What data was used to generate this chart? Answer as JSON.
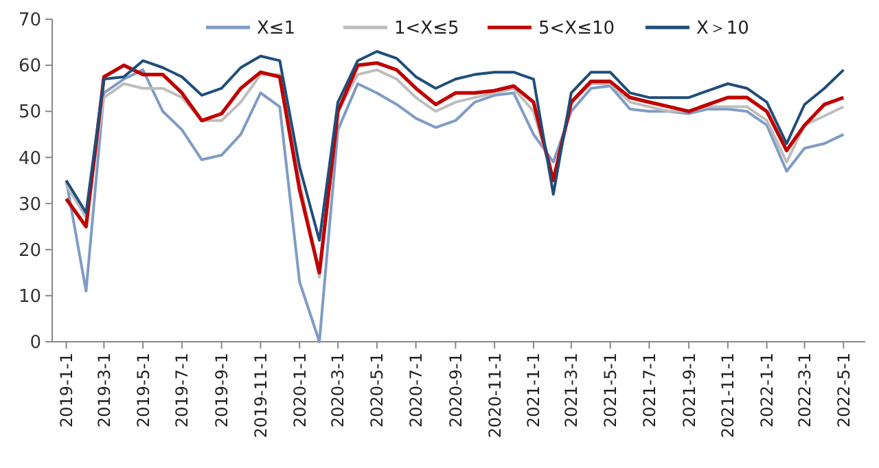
{
  "chart_data": {
    "type": "line",
    "x": [
      "2019-01",
      "2019-02",
      "2019-03",
      "2019-04",
      "2019-05",
      "2019-06",
      "2019-07",
      "2019-08",
      "2019-09",
      "2019-10",
      "2019-11",
      "2019-12",
      "2020-01",
      "2020-02",
      "2020-03",
      "2020-04",
      "2020-05",
      "2020-06",
      "2020-07",
      "2020-08",
      "2020-09",
      "2020-10",
      "2020-11",
      "2020-12",
      "2021-01",
      "2021-02",
      "2021-03",
      "2021-04",
      "2021-05",
      "2021-06",
      "2021-07",
      "2021-08",
      "2021-09",
      "2021-10",
      "2021-11",
      "2021-12",
      "2022-01",
      "2022-02",
      "2022-03",
      "2022-04",
      "2022-05"
    ],
    "series": [
      {
        "name": "X≤1",
        "color": "#7f9cc4",
        "values": [
          35,
          11,
          54,
          57,
          59,
          50,
          46,
          39.5,
          40.5,
          45,
          54,
          51,
          13,
          0,
          46,
          56,
          54,
          51.5,
          48.5,
          46.5,
          48,
          52,
          53.5,
          54,
          45,
          39,
          50,
          55,
          55.5,
          50.5,
          50,
          50,
          49.5,
          50.5,
          50.5,
          50,
          47,
          37,
          42,
          43,
          45
        ]
      },
      {
        "name": "1<X≤5",
        "color": "#bdbdbd",
        "values": [
          34,
          27,
          53,
          56,
          55,
          55,
          53,
          48,
          48,
          52,
          58,
          58,
          35,
          14,
          50,
          58,
          59,
          57,
          53,
          50,
          52,
          53,
          54,
          55,
          50,
          35,
          52,
          56,
          56,
          52,
          51,
          50,
          50,
          51,
          51,
          51,
          48,
          39,
          47,
          49,
          51
        ]
      },
      {
        "name": "5<X≤10",
        "color": "#c00000",
        "values": [
          31,
          25,
          57.5,
          60,
          58,
          58,
          54,
          48,
          49.5,
          55,
          58.5,
          57.5,
          33,
          15,
          50,
          60,
          60.5,
          59,
          55,
          51.5,
          54,
          54,
          54.5,
          55.5,
          52,
          35,
          52,
          56.5,
          56.5,
          53,
          52,
          51,
          50,
          51.5,
          53,
          53,
          50,
          41.5,
          47,
          51.5,
          53
        ]
      },
      {
        "name": "X＞10",
        "color": "#1f4e79",
        "values": [
          35,
          28,
          57,
          57.5,
          61,
          59.5,
          57.5,
          53.5,
          55,
          59.5,
          62,
          61,
          38,
          22,
          52,
          61,
          63,
          61.5,
          57.5,
          55,
          57,
          58,
          58.5,
          58.5,
          57,
          32,
          54,
          58.5,
          58.5,
          54,
          53,
          53,
          53,
          54.5,
          56,
          55,
          52,
          43,
          51.5,
          55,
          59
        ]
      }
    ],
    "xlim": [
      "2018-12-10",
      "2022-06-04"
    ],
    "xticks": [
      {
        "value": "2019-01",
        "label": "2019-1-1"
      },
      {
        "value": "2019-03",
        "label": "2019-3-1"
      },
      {
        "value": "2019-05",
        "label": "2019-5-1"
      },
      {
        "value": "2019-07",
        "label": "2019-7-1"
      },
      {
        "value": "2019-09",
        "label": "2019-9-1"
      },
      {
        "value": "2019-11",
        "label": "2019-11-1"
      },
      {
        "value": "2020-01",
        "label": "2020-1-1"
      },
      {
        "value": "2020-03",
        "label": "2020-3-1"
      },
      {
        "value": "2020-05",
        "label": "2020-5-1"
      },
      {
        "value": "2020-07",
        "label": "2020-7-1"
      },
      {
        "value": "2020-09",
        "label": "2020-9-1"
      },
      {
        "value": "2020-11",
        "label": "2020-11-1"
      },
      {
        "value": "2021-01",
        "label": "2021-1-1"
      },
      {
        "value": "2021-03",
        "label": "2021-3-1"
      },
      {
        "value": "2021-05",
        "label": "2021-5-1"
      },
      {
        "value": "2021-07",
        "label": "2021-7-1"
      },
      {
        "value": "2021-09",
        "label": "2021-9-1"
      },
      {
        "value": "2021-11",
        "label": "2021-11-1"
      },
      {
        "value": "2022-01",
        "label": "2022-1-1"
      },
      {
        "value": "2022-03",
        "label": "2022-3-1"
      },
      {
        "value": "2022-05",
        "label": "2022-5-1"
      }
    ],
    "ylim": [
      0,
      70
    ],
    "yticks": [
      0,
      10,
      20,
      30,
      40,
      50,
      60,
      70
    ],
    "grid": false,
    "legend": "top",
    "marker": "none",
    "line_style": "solid"
  }
}
